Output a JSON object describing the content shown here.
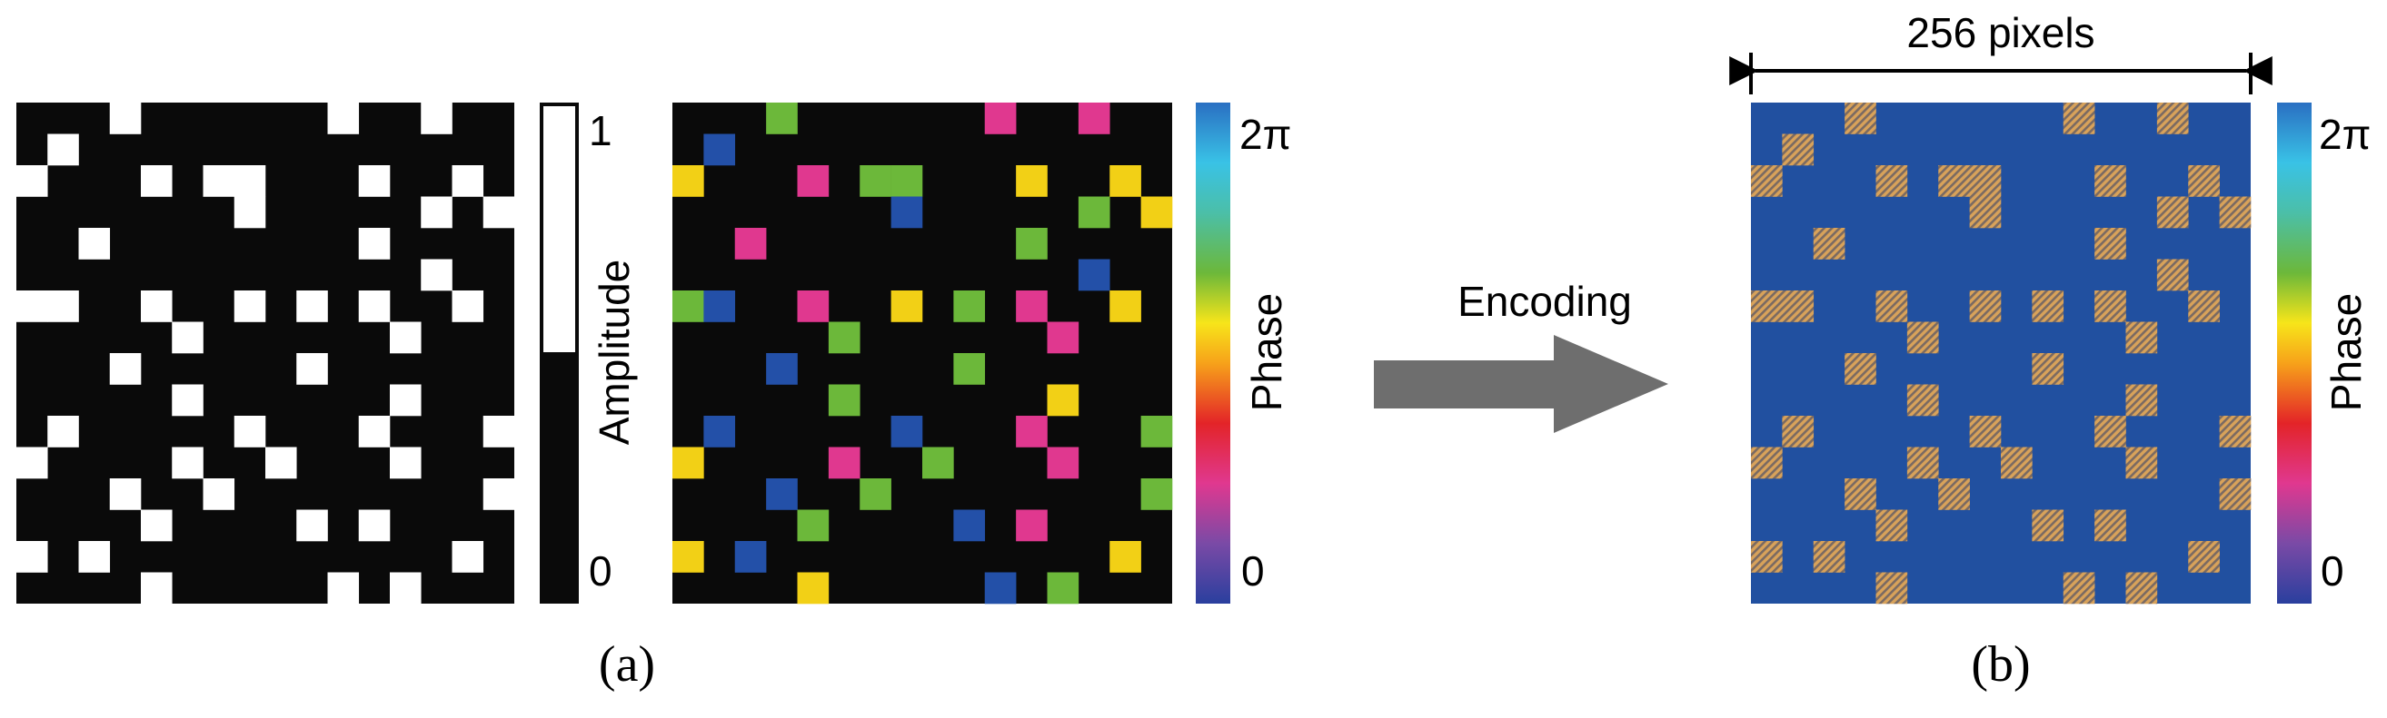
{
  "amplitude_panel": {
    "colorbar_label": "Amplitude",
    "tick_max": "1",
    "tick_min": "0"
  },
  "phase_panel": {
    "colorbar_label": "Phase",
    "tick_max": "2π",
    "tick_min": "0"
  },
  "arrow": {
    "label": "Encoding"
  },
  "encoded_panel": {
    "dimension_label": "256 pixels",
    "colorbar_label": "Phase",
    "tick_max": "2π",
    "tick_min": "0"
  },
  "captions": {
    "a": "(a)",
    "b": "(b)"
  },
  "grid": {
    "size": 16,
    "note_cells": "row/col indices of nonzero pixels; phase levels: b=blue(~0), m=magenta, y=yellow, g=green",
    "cells": [
      [
        0,
        3,
        "g"
      ],
      [
        0,
        10,
        "m"
      ],
      [
        0,
        13,
        "m"
      ],
      [
        1,
        1,
        "b"
      ],
      [
        2,
        0,
        "y"
      ],
      [
        2,
        4,
        "m"
      ],
      [
        2,
        6,
        "g"
      ],
      [
        2,
        7,
        "g"
      ],
      [
        2,
        11,
        "y"
      ],
      [
        2,
        14,
        "y"
      ],
      [
        3,
        7,
        "b"
      ],
      [
        3,
        13,
        "g"
      ],
      [
        3,
        15,
        "y"
      ],
      [
        4,
        2,
        "m"
      ],
      [
        4,
        11,
        "g"
      ],
      [
        5,
        13,
        "b"
      ],
      [
        6,
        0,
        "g"
      ],
      [
        6,
        1,
        "b"
      ],
      [
        6,
        4,
        "m"
      ],
      [
        6,
        7,
        "y"
      ],
      [
        6,
        9,
        "g"
      ],
      [
        6,
        11,
        "m"
      ],
      [
        6,
        14,
        "y"
      ],
      [
        7,
        5,
        "g"
      ],
      [
        7,
        12,
        "m"
      ],
      [
        8,
        3,
        "b"
      ],
      [
        8,
        9,
        "g"
      ],
      [
        9,
        5,
        "g"
      ],
      [
        9,
        12,
        "y"
      ],
      [
        10,
        1,
        "b"
      ],
      [
        10,
        7,
        "b"
      ],
      [
        10,
        11,
        "m"
      ],
      [
        10,
        15,
        "g"
      ],
      [
        11,
        0,
        "y"
      ],
      [
        11,
        5,
        "m"
      ],
      [
        11,
        8,
        "g"
      ],
      [
        11,
        12,
        "m"
      ],
      [
        12,
        3,
        "b"
      ],
      [
        12,
        6,
        "g"
      ],
      [
        12,
        15,
        "g"
      ],
      [
        13,
        4,
        "g"
      ],
      [
        13,
        9,
        "b"
      ],
      [
        13,
        11,
        "m"
      ],
      [
        14,
        0,
        "y"
      ],
      [
        14,
        2,
        "b"
      ],
      [
        14,
        14,
        "y"
      ],
      [
        15,
        4,
        "y"
      ],
      [
        15,
        10,
        "b"
      ],
      [
        15,
        12,
        "g"
      ]
    ]
  },
  "colors": {
    "background_black": "#0a0a0a",
    "encoded_blue": "#2150a0",
    "encoded_hatch_light": "#d8a25a",
    "encoded_hatch_dark": "#7a6a62",
    "arrow_gray": "#6e6e6e",
    "phase_b": "#2350a8",
    "phase_m": "#e0388f",
    "phase_y": "#f2d016",
    "phase_g": "#6cb83a"
  }
}
